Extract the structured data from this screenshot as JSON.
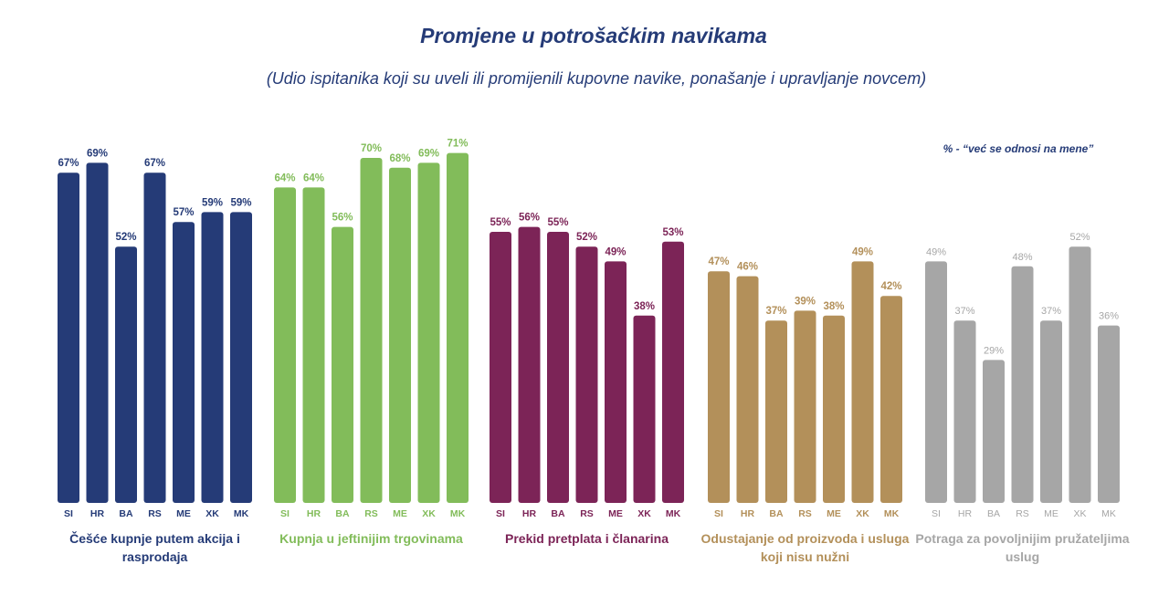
{
  "chart_data": {
    "type": "bar",
    "title": "Promjene u potrošačkim navikama",
    "subtitle": "(Udio ispitanika koji su uveli ili promijenili kupovne navike, ponašanje i upravljanje novcem)",
    "note": "% - “već se odnosi na mene”",
    "categories": [
      "SI",
      "HR",
      "BA",
      "RS",
      "ME",
      "XK",
      "MK"
    ],
    "ylim": [
      0,
      75
    ],
    "groups": [
      {
        "name": "Češće kupnje putem akcija i rasprodaja",
        "color": "#253b77",
        "values": [
          67,
          69,
          52,
          67,
          57,
          59,
          59
        ],
        "labels": [
          "67%",
          "69%",
          "52%",
          "67%",
          "57%",
          "59%",
          "59%"
        ]
      },
      {
        "name": "Kupnja u jeftinijim trgovinama",
        "color": "#82bc5a",
        "values": [
          64,
          64,
          56,
          70,
          68,
          69,
          71
        ],
        "labels": [
          "64%",
          "64%",
          "56%",
          "70%",
          "68%",
          "69%",
          "71%"
        ]
      },
      {
        "name": "Prekid pretplata i članarina",
        "color": "#7c2457",
        "values": [
          55,
          56,
          55,
          52,
          49,
          38,
          53
        ],
        "labels": [
          "55%",
          "56%",
          "55%",
          "52%",
          "49%",
          "38%",
          "53%"
        ]
      },
      {
        "name": "Odustajanje od proizvoda i usluga koji nisu nužni",
        "color": "#b3905a",
        "values": [
          47,
          46,
          37,
          39,
          38,
          49,
          42
        ],
        "labels": [
          "47%",
          "46%",
          "37%",
          "39%",
          "38%",
          "49%",
          "42%"
        ]
      },
      {
        "name": "Potraga za povoljnijim pružateljima uslug",
        "color": "#a6a6a6",
        "values": [
          49,
          37,
          29,
          48,
          37,
          52,
          36
        ],
        "labels": [
          "49%",
          "37%",
          "29%",
          "48%",
          "37%",
          "52%",
          "36%"
        ]
      }
    ]
  }
}
